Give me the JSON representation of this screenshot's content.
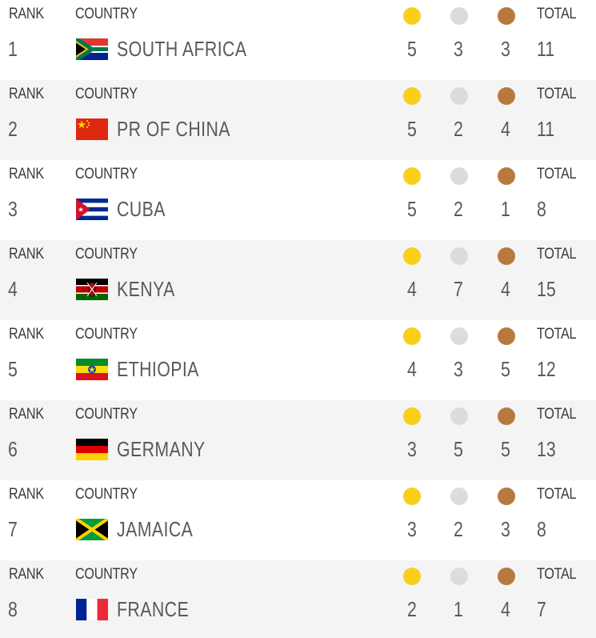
{
  "headers": {
    "rank": "RANK",
    "country": "COUNTRY",
    "total": "TOTAL"
  },
  "medal_icons": {
    "gold": {
      "icon": "gold-medal-icon",
      "color": "#f9cf1e"
    },
    "silver": {
      "icon": "silver-medal-icon",
      "color": "#dcdcdc"
    },
    "bronze": {
      "icon": "bronze-medal-icon",
      "color": "#b8793f"
    }
  },
  "rows": [
    {
      "rank": "1",
      "country": "SOUTH AFRICA",
      "flag": "south-africa-flag-icon",
      "gold": "5",
      "silver": "3",
      "bronze": "3",
      "total": "11"
    },
    {
      "rank": "2",
      "country": "PR OF CHINA",
      "flag": "china-flag-icon",
      "gold": "5",
      "silver": "2",
      "bronze": "4",
      "total": "11"
    },
    {
      "rank": "3",
      "country": "CUBA",
      "flag": "cuba-flag-icon",
      "gold": "5",
      "silver": "2",
      "bronze": "1",
      "total": "8"
    },
    {
      "rank": "4",
      "country": "KENYA",
      "flag": "kenya-flag-icon",
      "gold": "4",
      "silver": "7",
      "bronze": "4",
      "total": "15"
    },
    {
      "rank": "5",
      "country": "ETHIOPIA",
      "flag": "ethiopia-flag-icon",
      "gold": "4",
      "silver": "3",
      "bronze": "5",
      "total": "12"
    },
    {
      "rank": "6",
      "country": "GERMANY",
      "flag": "germany-flag-icon",
      "gold": "3",
      "silver": "5",
      "bronze": "5",
      "total": "13"
    },
    {
      "rank": "7",
      "country": "JAMAICA",
      "flag": "jamaica-flag-icon",
      "gold": "3",
      "silver": "2",
      "bronze": "3",
      "total": "8"
    },
    {
      "rank": "8",
      "country": "FRANCE",
      "flag": "france-flag-icon",
      "gold": "2",
      "silver": "1",
      "bronze": "4",
      "total": "7"
    }
  ]
}
